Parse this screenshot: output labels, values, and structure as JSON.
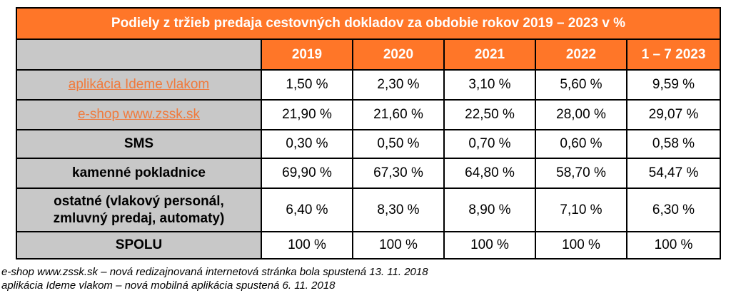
{
  "table": {
    "title": "Podiely z tržieb predaja cestovných dokladov za obdobie rokov 2019 – 2023 v %",
    "years": [
      "2019",
      "2020",
      "2021",
      "2022",
      "1 – 7 2023"
    ],
    "rows": [
      {
        "label": "aplikácia Ideme vlakom",
        "values": [
          "1,50 %",
          "2,30 %",
          "3,10 %",
          "5,60 %",
          "9,59 %"
        ]
      },
      {
        "label": "e-shop www.zssk.sk",
        "values": [
          "21,90 %",
          "21,60 %",
          "22,50 %",
          "28,00 %",
          "29,07 %"
        ]
      },
      {
        "label": "SMS",
        "values": [
          "0,30 %",
          "0,50 %",
          "0,70 %",
          "0,60 %",
          "0,58 %"
        ]
      },
      {
        "label": "kamenné pokladnice",
        "values": [
          "69,90 %",
          "67,30 %",
          "64,80 %",
          "58,70 %",
          "54,47 %"
        ]
      },
      {
        "label_line1": "ostatné (vlakový personál,",
        "label_line2": "zmluvný predaj, automaty)",
        "values": [
          "6,40 %",
          "8,30 %",
          "8,90 %",
          "7,10 %",
          "6,30 %"
        ]
      },
      {
        "label": "SPOLU",
        "values": [
          "100 %",
          "100 %",
          "100 %",
          "100 %",
          "100 %"
        ]
      }
    ]
  },
  "footnotes": [
    "e-shop www.zssk.sk – nová redizajnovaná internetová stránka bola spustená 13. 11. 2018",
    "aplikácia Ideme vlakom – nová mobilná aplikácia spustená 6. 11. 2018"
  ],
  "colors": {
    "header_orange": "#ff7628",
    "label_gray": "#c8c8c8",
    "link_orange": "#f07a3c"
  }
}
